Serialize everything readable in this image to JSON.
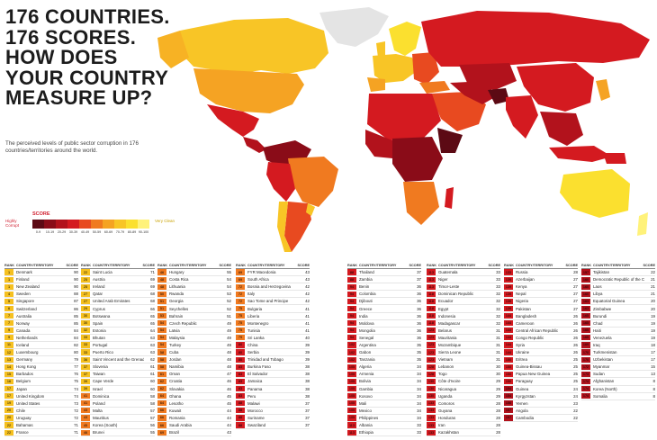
{
  "headline": [
    "176 COUNTRIES.",
    "176 SCORES.",
    "HOW DOES",
    "YOUR COUNTRY",
    "MEASURE UP?"
  ],
  "subtitle": "The perceived levels of public sector corruption in 176 countries/territories around the world.",
  "legend": {
    "title": "SCORE",
    "left_label": "Highly Corrupt",
    "right_label": "Very Clean",
    "ranges": [
      "0-9",
      "10-19",
      "20-29",
      "30-39",
      "40-49",
      "50-59",
      "60-69",
      "70-79",
      "80-89",
      "90-100"
    ],
    "colors": [
      "#5c0a14",
      "#8a0c18",
      "#b2121c",
      "#d41a20",
      "#e84a20",
      "#f07a20",
      "#f5a323",
      "#f8c526",
      "#fbe02f",
      "#fff27a"
    ]
  },
  "table_header": {
    "rank": "RANK",
    "country": "COUNTRY/TERRITORY",
    "score": "SCORE"
  },
  "rank_colors": {
    "top": "#f5c020",
    "mid": "#f07a20",
    "low": "#d41a20",
    "bottom": "#b2121c"
  },
  "columns": [
    [
      [
        "1",
        "Denmark",
        "90"
      ],
      [
        "1",
        "Finland",
        "90"
      ],
      [
        "1",
        "New Zealand",
        "90"
      ],
      [
        "4",
        "Sweden",
        "88"
      ],
      [
        "5",
        "Singapore",
        "87"
      ],
      [
        "6",
        "Switzerland",
        "86"
      ],
      [
        "7",
        "Australia",
        "85"
      ],
      [
        "7",
        "Norway",
        "85"
      ],
      [
        "9",
        "Canada",
        "84"
      ],
      [
        "9",
        "Netherlands",
        "84"
      ],
      [
        "11",
        "Iceland",
        "82"
      ],
      [
        "12",
        "Luxembourg",
        "80"
      ],
      [
        "13",
        "Germany",
        "79"
      ],
      [
        "14",
        "Hong Kong",
        "77"
      ],
      [
        "15",
        "Barbados",
        "76"
      ],
      [
        "16",
        "Belgium",
        "75"
      ],
      [
        "17",
        "Japan",
        "74"
      ],
      [
        "17",
        "United Kingdom",
        "74"
      ],
      [
        "19",
        "United States",
        "73"
      ],
      [
        "20",
        "Chile",
        "72"
      ],
      [
        "20",
        "Uruguay",
        "72"
      ],
      [
        "22",
        "Bahamas",
        "71"
      ],
      [
        "22",
        "France",
        "71"
      ]
    ],
    [
      [
        "22",
        "Saint Lucia",
        "71"
      ],
      [
        "25",
        "Austria",
        "69"
      ],
      [
        "25",
        "Ireland",
        "69"
      ],
      [
        "27",
        "Qatar",
        "68"
      ],
      [
        "27",
        "United Arab Emirates",
        "68"
      ],
      [
        "29",
        "Cyprus",
        "66"
      ],
      [
        "30",
        "Botswana",
        "65"
      ],
      [
        "30",
        "Spain",
        "65"
      ],
      [
        "32",
        "Estonia",
        "64"
      ],
      [
        "33",
        "Bhutan",
        "63"
      ],
      [
        "33",
        "Portugal",
        "63"
      ],
      [
        "33",
        "Puerto Rico",
        "63"
      ],
      [
        "36",
        "Saint Vincent and the Grenadines",
        "62"
      ],
      [
        "37",
        "Slovenia",
        "61"
      ],
      [
        "37",
        "Taiwan",
        "61"
      ],
      [
        "39",
        "Cape Verde",
        "60"
      ],
      [
        "39",
        "Israel",
        "60"
      ],
      [
        "41",
        "Dominica",
        "58"
      ],
      [
        "41",
        "Poland",
        "58"
      ],
      [
        "43",
        "Malta",
        "57"
      ],
      [
        "43",
        "Mauritius",
        "57"
      ],
      [
        "45",
        "Korea (South)",
        "56"
      ],
      [
        "46",
        "Brunei",
        "55"
      ]
    ],
    [
      [
        "46",
        "Hungary",
        "55"
      ],
      [
        "48",
        "Costa Rica",
        "54"
      ],
      [
        "48",
        "Lithuania",
        "54"
      ],
      [
        "50",
        "Rwanda",
        "53"
      ],
      [
        "51",
        "Georgia",
        "52"
      ],
      [
        "51",
        "Seychelles",
        "52"
      ],
      [
        "53",
        "Bahrain",
        "51"
      ],
      [
        "54",
        "Czech Republic",
        "49"
      ],
      [
        "54",
        "Latvia",
        "49"
      ],
      [
        "54",
        "Malaysia",
        "49"
      ],
      [
        "54",
        "Turkey",
        "49"
      ],
      [
        "58",
        "Cuba",
        "48"
      ],
      [
        "58",
        "Jordan",
        "48"
      ],
      [
        "58",
        "Namibia",
        "48"
      ],
      [
        "61",
        "Oman",
        "47"
      ],
      [
        "62",
        "Croatia",
        "46"
      ],
      [
        "62",
        "Slovakia",
        "46"
      ],
      [
        "64",
        "Ghana",
        "45"
      ],
      [
        "64",
        "Lesotho",
        "45"
      ],
      [
        "66",
        "Kuwait",
        "44"
      ],
      [
        "66",
        "Romania",
        "44"
      ],
      [
        "66",
        "Saudi Arabia",
        "44"
      ],
      [
        "69",
        "Brazil",
        "43"
      ]
    ],
    [
      [
        "69",
        "FYR Macedonia",
        "43"
      ],
      [
        "69",
        "South Africa",
        "43"
      ],
      [
        "72",
        "Bosnia and Herzegovina",
        "42"
      ],
      [
        "72",
        "Italy",
        "42"
      ],
      [
        "72",
        "Sao Tome and Principe",
        "42"
      ],
      [
        "75",
        "Bulgaria",
        "41"
      ],
      [
        "75",
        "Liberia",
        "41"
      ],
      [
        "75",
        "Montenegro",
        "41"
      ],
      [
        "75",
        "Tunisia",
        "41"
      ],
      [
        "79",
        "Sri Lanka",
        "40"
      ],
      [
        "80",
        "China",
        "39"
      ],
      [
        "80",
        "Serbia",
        "39"
      ],
      [
        "80",
        "Trinidad and Tobago",
        "39"
      ],
      [
        "83",
        "Burkina Faso",
        "38"
      ],
      [
        "83",
        "El Salvador",
        "38"
      ],
      [
        "83",
        "Jamaica",
        "38"
      ],
      [
        "83",
        "Panama",
        "38"
      ],
      [
        "83",
        "Peru",
        "38"
      ],
      [
        "88",
        "Malawi",
        "37"
      ],
      [
        "88",
        "Morocco",
        "37"
      ],
      [
        "88",
        "Suriname",
        "37"
      ],
      [
        "88",
        "Swaziland",
        "37"
      ]
    ],
    [
      [
        "88",
        "Thailand",
        "37"
      ],
      [
        "88",
        "Zambia",
        "37"
      ],
      [
        "94",
        "Benin",
        "36"
      ],
      [
        "94",
        "Colombia",
        "36"
      ],
      [
        "94",
        "Djibouti",
        "36"
      ],
      [
        "94",
        "Greece",
        "36"
      ],
      [
        "94",
        "India",
        "36"
      ],
      [
        "94",
        "Moldova",
        "36"
      ],
      [
        "94",
        "Mongolia",
        "36"
      ],
      [
        "94",
        "Senegal",
        "36"
      ],
      [
        "102",
        "Argentina",
        "35"
      ],
      [
        "102",
        "Gabon",
        "35"
      ],
      [
        "102",
        "Tanzania",
        "35"
      ],
      [
        "105",
        "Algeria",
        "34"
      ],
      [
        "105",
        "Armenia",
        "34"
      ],
      [
        "105",
        "Bolivia",
        "34"
      ],
      [
        "105",
        "Gambia",
        "34"
      ],
      [
        "105",
        "Kosovo",
        "34"
      ],
      [
        "105",
        "Mali",
        "34"
      ],
      [
        "105",
        "Mexico",
        "34"
      ],
      [
        "105",
        "Philippines",
        "34"
      ],
      [
        "113",
        "Albania",
        "33"
      ],
      [
        "113",
        "Ethiopia",
        "33"
      ]
    ],
    [
      [
        "113",
        "Guatemala",
        "33"
      ],
      [
        "113",
        "Niger",
        "33"
      ],
      [
        "113",
        "Timor-Leste",
        "33"
      ],
      [
        "118",
        "Dominican Republic",
        "32"
      ],
      [
        "118",
        "Ecuador",
        "32"
      ],
      [
        "118",
        "Egypt",
        "32"
      ],
      [
        "118",
        "Indonesia",
        "32"
      ],
      [
        "118",
        "Madagascar",
        "32"
      ],
      [
        "123",
        "Belarus",
        "31"
      ],
      [
        "123",
        "Mauritania",
        "31"
      ],
      [
        "123",
        "Mozambique",
        "31"
      ],
      [
        "123",
        "Sierra Leone",
        "31"
      ],
      [
        "123",
        "Vietnam",
        "31"
      ],
      [
        "128",
        "Lebanon",
        "30"
      ],
      [
        "128",
        "Togo",
        "30"
      ],
      [
        "130",
        "Côte d'Ivoire",
        "29"
      ],
      [
        "130",
        "Nicaragua",
        "29"
      ],
      [
        "130",
        "Uganda",
        "29"
      ],
      [
        "133",
        "Comoros",
        "28"
      ],
      [
        "133",
        "Guyana",
        "28"
      ],
      [
        "133",
        "Honduras",
        "28"
      ],
      [
        "133",
        "Iran",
        "28"
      ],
      [
        "133",
        "Kazakhstan",
        "28"
      ]
    ],
    [
      [
        "133",
        "Russia",
        "28"
      ],
      [
        "139",
        "Azerbaijan",
        "27"
      ],
      [
        "139",
        "Kenya",
        "27"
      ],
      [
        "139",
        "Nepal",
        "27"
      ],
      [
        "139",
        "Nigeria",
        "27"
      ],
      [
        "139",
        "Pakistan",
        "27"
      ],
      [
        "144",
        "Bangladesh",
        "26"
      ],
      [
        "144",
        "Cameroon",
        "26"
      ],
      [
        "144",
        "Central African Republic",
        "26"
      ],
      [
        "144",
        "Congo Republic",
        "26"
      ],
      [
        "144",
        "Syria",
        "26"
      ],
      [
        "144",
        "Ukraine",
        "26"
      ],
      [
        "150",
        "Eritrea",
        "25"
      ],
      [
        "150",
        "Guinea-Bissau",
        "25"
      ],
      [
        "150",
        "Papua New Guinea",
        "25"
      ],
      [
        "150",
        "Paraguay",
        "25"
      ],
      [
        "154",
        "Guinea",
        "24"
      ],
      [
        "154",
        "Kyrgyzstan",
        "24"
      ],
      [
        "156",
        "Yemen",
        "23"
      ],
      [
        "157",
        "Angola",
        "22"
      ],
      [
        "157",
        "Cambodia",
        "22"
      ]
    ],
    [
      [
        "157",
        "Tajikistan",
        "22"
      ],
      [
        "160",
        "Democratic Republic of the Congo",
        "21"
      ],
      [
        "160",
        "Laos",
        "21"
      ],
      [
        "160",
        "Libya",
        "21"
      ],
      [
        "163",
        "Equatorial Guinea",
        "20"
      ],
      [
        "163",
        "Zimbabwe",
        "20"
      ],
      [
        "165",
        "Burundi",
        "19"
      ],
      [
        "165",
        "Chad",
        "19"
      ],
      [
        "165",
        "Haiti",
        "19"
      ],
      [
        "165",
        "Venezuela",
        "19"
      ],
      [
        "169",
        "Iraq",
        "18"
      ],
      [
        "170",
        "Turkmenistan",
        "17"
      ],
      [
        "170",
        "Uzbekistan",
        "17"
      ],
      [
        "172",
        "Myanmar",
        "15"
      ],
      [
        "173",
        "Sudan",
        "13"
      ],
      [
        "174",
        "Afghanistan",
        "8"
      ],
      [
        "174",
        "Korea (North)",
        "8"
      ],
      [
        "174",
        "Somalia",
        "8"
      ]
    ]
  ]
}
